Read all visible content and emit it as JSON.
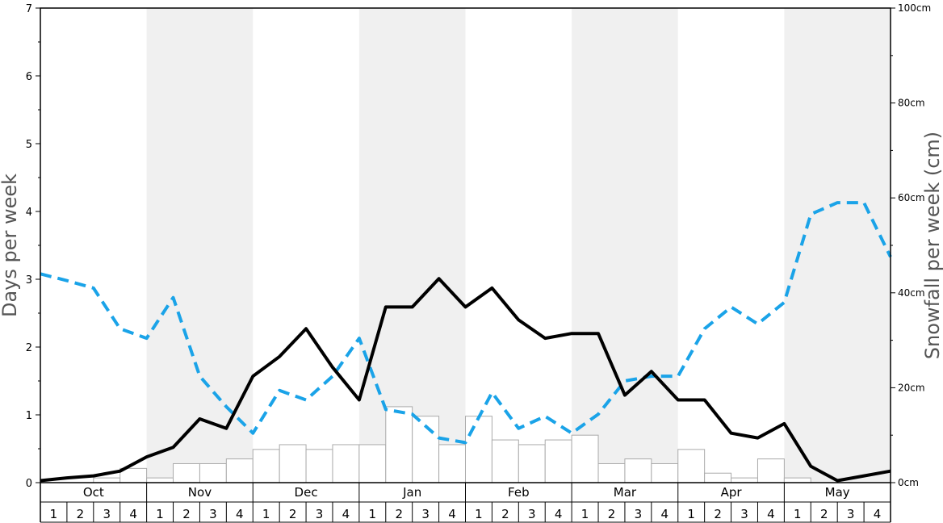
{
  "chart_data": {
    "type": "bar",
    "months": [
      "Oct",
      "Nov",
      "Dec",
      "Jan",
      "Feb",
      "Mar",
      "Apr",
      "May"
    ],
    "weeks": [
      "1",
      "2",
      "3",
      "4"
    ],
    "y_left": {
      "label": "Days per week",
      "ylim": [
        0,
        7
      ],
      "ticks": [
        "0",
        "1",
        "2",
        "3",
        "4",
        "5",
        "6",
        "7"
      ]
    },
    "y_right": {
      "label": "Snowfall per week (cm)",
      "ylim": [
        0,
        100
      ],
      "ticks": [
        "0cm",
        "20cm",
        "40cm",
        "60cm",
        "80cm",
        "100cm"
      ]
    },
    "series": [
      {
        "values": [
          0,
          0,
          1,
          3,
          1,
          4,
          4,
          5,
          7,
          8,
          7,
          8,
          8,
          16,
          14,
          8,
          14,
          9,
          8,
          9,
          10,
          4,
          5,
          4,
          7,
          2,
          1,
          5,
          1,
          0,
          0,
          0
        ]
      },
      {
        "values": [
          0.03,
          0.07,
          0.1,
          0.17,
          0.38,
          0.52,
          0.94,
          0.8,
          1.57,
          1.86,
          2.27,
          1.7,
          1.22,
          2.59,
          2.59,
          3.01,
          2.59,
          2.87,
          2.4,
          2.13,
          2.2,
          2.2,
          1.29,
          1.64,
          1.22,
          1.22,
          0.73,
          0.66,
          0.87,
          0.24,
          0.03,
          0.1,
          0.17
        ]
      },
      {
        "values": [
          3.08,
          2.98,
          2.87,
          2.27,
          2.13,
          2.73,
          1.57,
          1.12,
          0.73,
          1.36,
          1.22,
          1.57,
          2.13,
          1.08,
          1.01,
          0.66,
          0.59,
          1.33,
          0.8,
          0.98,
          0.73,
          1.01,
          1.5,
          1.57,
          1.57,
          2.27,
          2.59,
          2.34,
          2.66,
          3.96,
          4.13,
          4.13,
          3.33
        ]
      }
    ],
    "colors": {
      "background_shade": "#f0f0f0",
      "bar_fill": "#ffffff",
      "bar_stroke": "#aaaaaa",
      "solid_line": "#000000",
      "dashed_line": "#1aa3e8"
    }
  }
}
